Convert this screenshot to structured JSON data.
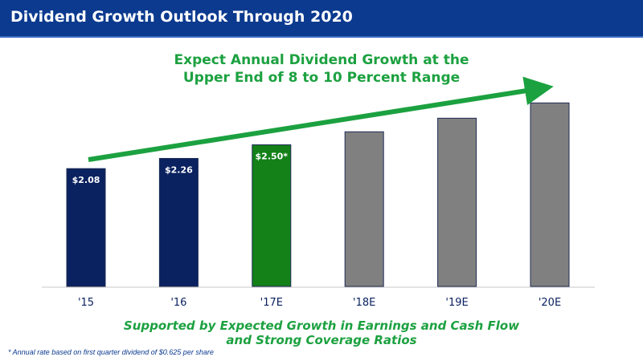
{
  "header": {
    "title": "Dividend Growth Outlook Through 2020"
  },
  "headline": {
    "line1": "Expect Annual Dividend Growth at the",
    "line2": "Upper End of 8 to 10 Percent Range"
  },
  "support": {
    "line1": "Supported by Expected Growth in Earnings and Cash Flow",
    "line2": "and Strong Coverage Ratios"
  },
  "footnote": "* Annual rate based on first quarter dividend of $0.625 per share",
  "colors": {
    "header": "#0b3a8f",
    "actual": "#0b2260",
    "estimate_current": "#138018",
    "estimate_future": "#808080",
    "accent_green": "#1ca140",
    "axis": "#c8c8c8"
  },
  "chart_data": {
    "type": "bar",
    "categories": [
      "'15",
      "'16",
      "'17E",
      "'18E",
      "'19E",
      "'20E"
    ],
    "values": [
      2.08,
      2.26,
      2.5,
      2.73,
      2.97,
      3.24
    ],
    "data_labels": [
      "$2.08",
      "$2.26",
      "$2.50*",
      "",
      "",
      ""
    ],
    "bar_colors": [
      "#0b2260",
      "#0b2260",
      "#138018",
      "#808080",
      "#808080",
      "#808080"
    ],
    "ylim": [
      0,
      3.4
    ],
    "trend_arrow": "up-right"
  }
}
